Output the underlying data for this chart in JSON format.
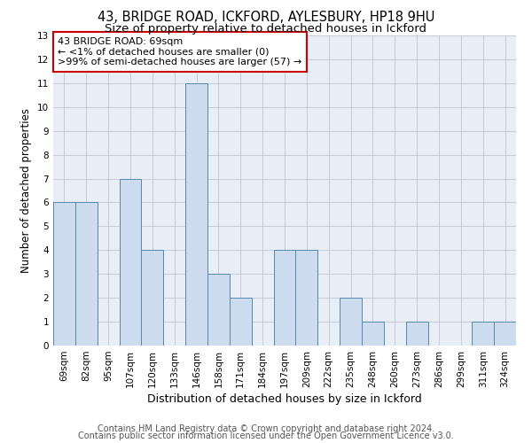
{
  "title": "43, BRIDGE ROAD, ICKFORD, AYLESBURY, HP18 9HU",
  "subtitle": "Size of property relative to detached houses in Ickford",
  "xlabel": "Distribution of detached houses by size in Ickford",
  "ylabel": "Number of detached properties",
  "bar_color": "#ccdcee",
  "bar_edge_color": "#5588aa",
  "categories": [
    "69sqm",
    "82sqm",
    "95sqm",
    "107sqm",
    "120sqm",
    "133sqm",
    "146sqm",
    "158sqm",
    "171sqm",
    "184sqm",
    "197sqm",
    "209sqm",
    "222sqm",
    "235sqm",
    "248sqm",
    "260sqm",
    "273sqm",
    "286sqm",
    "299sqm",
    "311sqm",
    "324sqm"
  ],
  "values": [
    6,
    6,
    0,
    7,
    4,
    0,
    11,
    3,
    2,
    0,
    4,
    4,
    0,
    2,
    1,
    0,
    1,
    0,
    0,
    1,
    1
  ],
  "ylim": [
    0,
    13
  ],
  "yticks": [
    0,
    1,
    2,
    3,
    4,
    5,
    6,
    7,
    8,
    9,
    10,
    11,
    12,
    13
  ],
  "annotation_line1": "43 BRIDGE ROAD: 69sqm",
  "annotation_line2": "← <1% of detached houses are smaller (0)",
  "annotation_line3": ">99% of semi-detached houses are larger (57) →",
  "box_color": "white",
  "box_edge_color": "#cc0000",
  "footer1": "Contains HM Land Registry data © Crown copyright and database right 2024.",
  "footer2": "Contains public sector information licensed under the Open Government Licence v3.0.",
  "background_color": "#ffffff",
  "plot_bg_color": "#e8eef5",
  "grid_color": "#bbbbcc",
  "title_fontsize": 10.5,
  "subtitle_fontsize": 9.5,
  "ylabel_fontsize": 8.5,
  "xlabel_fontsize": 9,
  "tick_fontsize": 7.5,
  "annotation_fontsize": 8,
  "footer_fontsize": 7
}
